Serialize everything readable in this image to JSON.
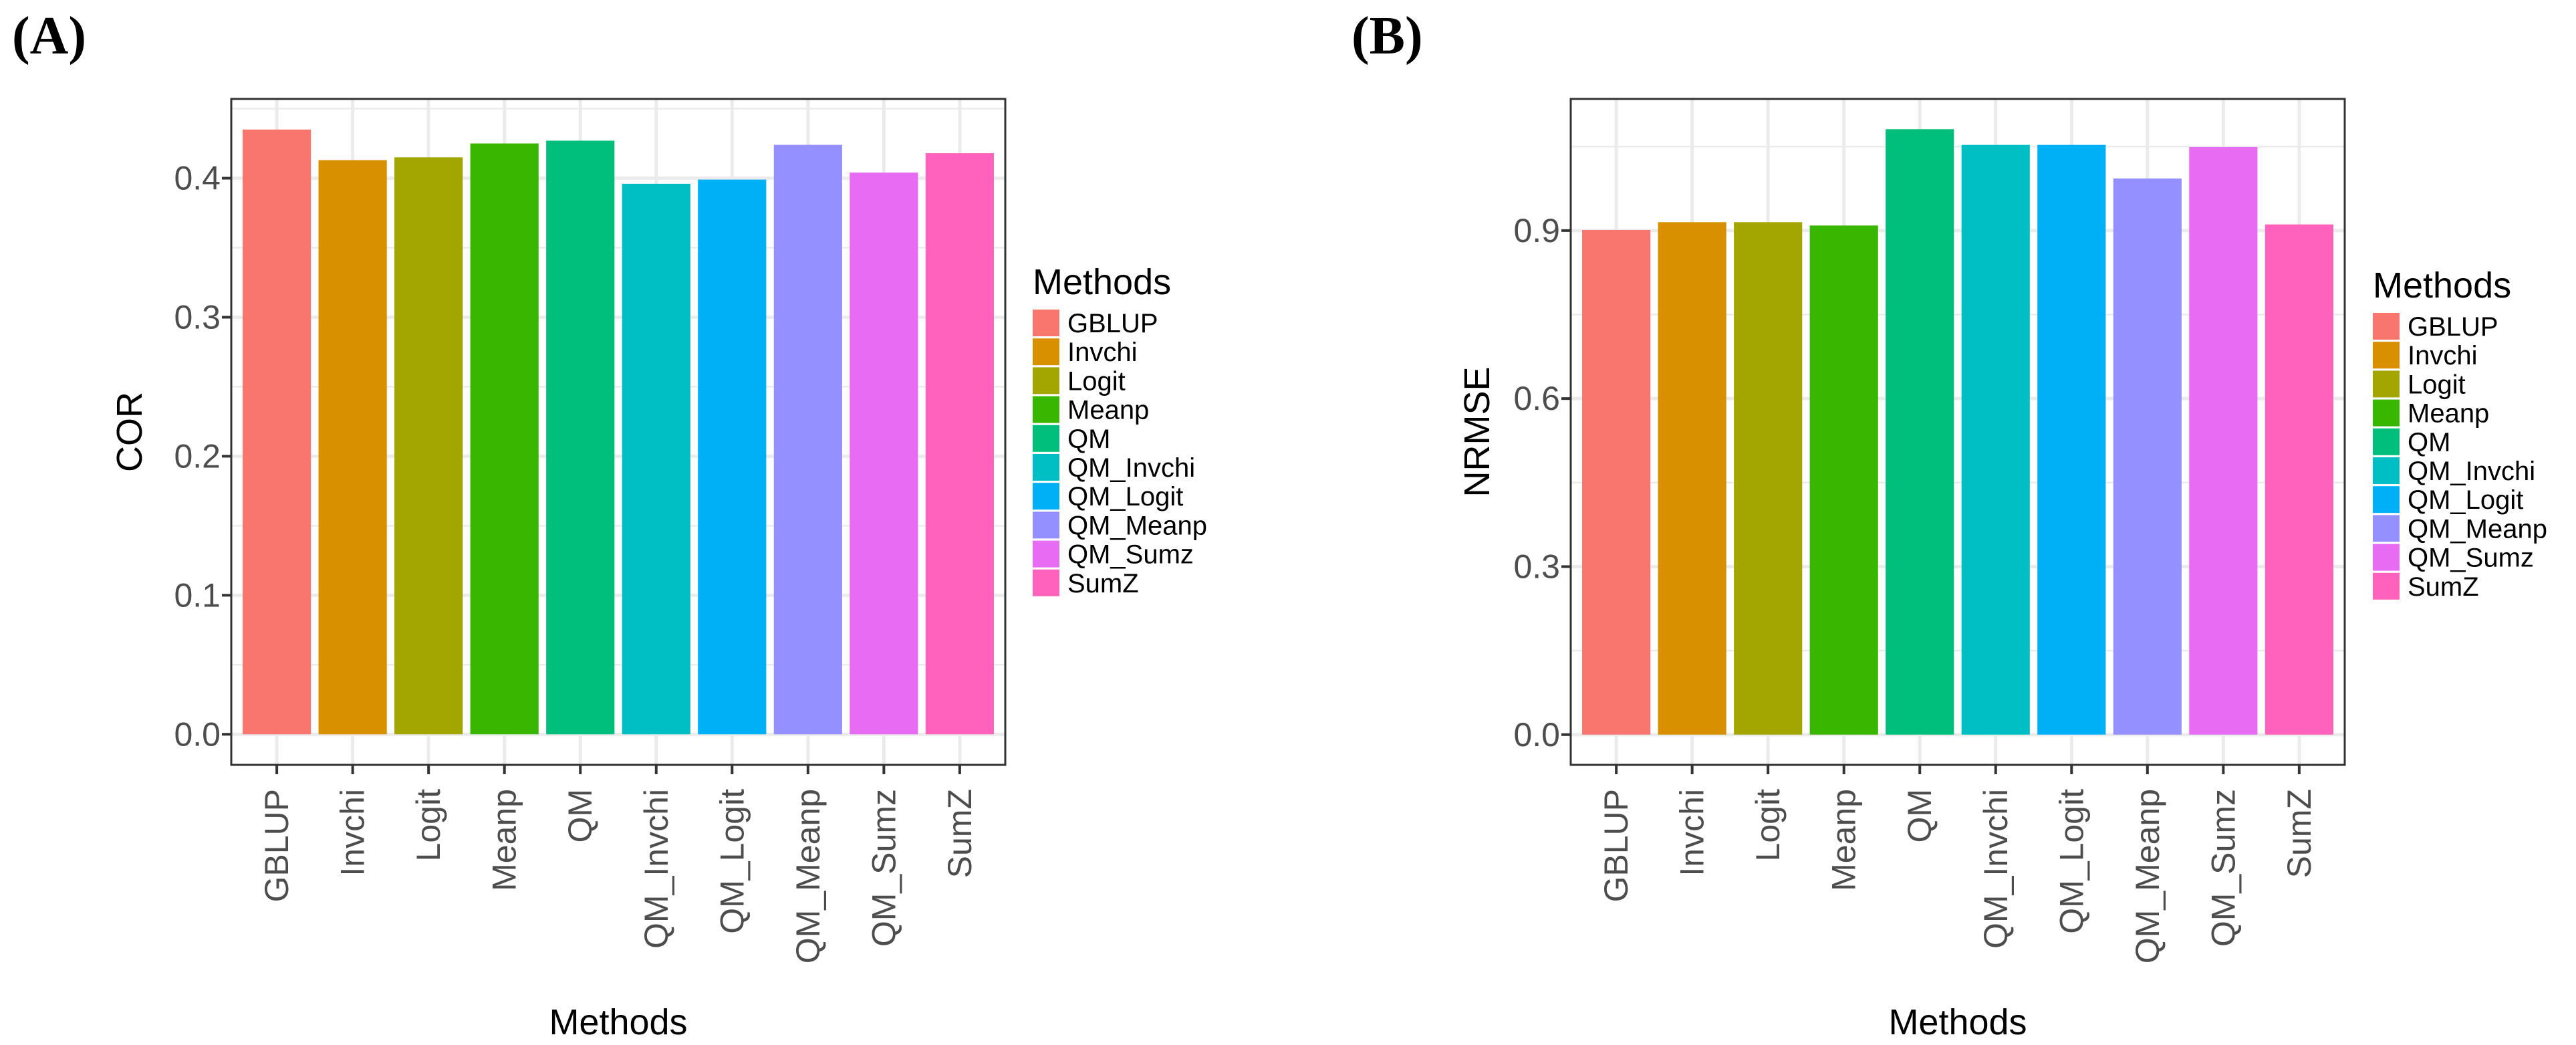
{
  "figure": {
    "background": "#ffffff",
    "gridline_color": "#ebebeb",
    "panel_border_color": "#333333",
    "text_color": "#4d4d4d",
    "axis_title_color": "#000000"
  },
  "legend": {
    "title": "Methods",
    "entries": [
      {
        "label": "GBLUP",
        "color": "#F8766D"
      },
      {
        "label": "Invchi",
        "color": "#D89000"
      },
      {
        "label": "Logit",
        "color": "#A3A500"
      },
      {
        "label": "Meanp",
        "color": "#39B600"
      },
      {
        "label": "QM",
        "color": "#00BF7D"
      },
      {
        "label": "QM_Invchi",
        "color": "#00BFC4"
      },
      {
        "label": "QM_Logit",
        "color": "#00B0F6"
      },
      {
        "label": "QM_Meanp",
        "color": "#9590FF"
      },
      {
        "label": "QM_Sumz",
        "color": "#E76BF3"
      },
      {
        "label": "SumZ",
        "color": "#FF62BC"
      }
    ]
  },
  "chart_data": [
    {
      "panel_label": "(A)",
      "type": "bar",
      "title": "",
      "xlabel": "Methods",
      "ylabel": "COR",
      "categories": [
        "GBLUP",
        "Invchi",
        "Logit",
        "Meanp",
        "QM",
        "QM_Invchi",
        "QM_Logit",
        "QM_Meanp",
        "QM_Sumz",
        "SumZ"
      ],
      "values": [
        0.435,
        0.413,
        0.415,
        0.425,
        0.427,
        0.396,
        0.399,
        0.424,
        0.404,
        0.418
      ],
      "ylim": [
        -0.022,
        0.457
      ],
      "yticks": [
        0.0,
        0.1,
        0.2,
        0.3,
        0.4
      ],
      "ytick_labels": [
        "0.0",
        "0.1",
        "0.2",
        "0.3",
        "0.4"
      ],
      "grid": true,
      "legend_position": "right"
    },
    {
      "panel_label": "(B)",
      "type": "bar",
      "title": "",
      "xlabel": "Methods",
      "ylabel": "NRMSE",
      "categories": [
        "GBLUP",
        "Invchi",
        "Logit",
        "Meanp",
        "QM",
        "QM_Invchi",
        "QM_Logit",
        "QM_Meanp",
        "QM_Sumz",
        "SumZ"
      ],
      "values": [
        0.901,
        0.915,
        0.915,
        0.909,
        1.081,
        1.053,
        1.053,
        0.993,
        1.049,
        0.911
      ],
      "ylim": [
        -0.054,
        1.135
      ],
      "yticks": [
        0.0,
        0.3,
        0.6,
        0.9
      ],
      "ytick_labels": [
        "0.0",
        "0.3",
        "0.6",
        "0.9"
      ],
      "grid": true,
      "legend_position": "right"
    }
  ]
}
